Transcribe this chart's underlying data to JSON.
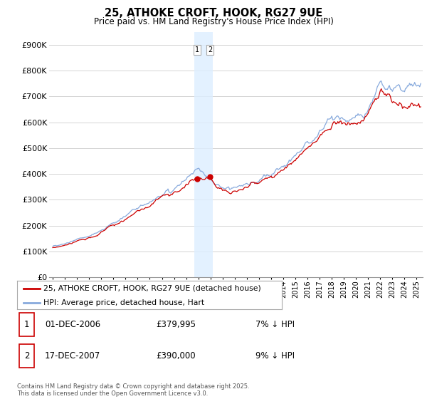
{
  "title": "25, ATHOKE CROFT, HOOK, RG27 9UE",
  "subtitle": "Price paid vs. HM Land Registry's House Price Index (HPI)",
  "copyright": "Contains HM Land Registry data © Crown copyright and database right 2025.\nThis data is licensed under the Open Government Licence v3.0.",
  "legend_entries": [
    "25, ATHOKE CROFT, HOOK, RG27 9UE (detached house)",
    "HPI: Average price, detached house, Hart"
  ],
  "transactions": [
    {
      "num": "1",
      "date": "01-DEC-2006",
      "price": "£379,995",
      "hpi_diff": "7% ↓ HPI"
    },
    {
      "num": "2",
      "date": "17-DEC-2007",
      "price": "£390,000",
      "hpi_diff": "9% ↓ HPI"
    }
  ],
  "transaction_dates": [
    2006.917,
    2007.958
  ],
  "transaction_prices": [
    379995,
    390000
  ],
  "ylim": [
    0,
    950000
  ],
  "yticks": [
    0,
    100000,
    200000,
    300000,
    400000,
    500000,
    600000,
    700000,
    800000,
    900000
  ],
  "ytick_labels": [
    "£0",
    "£100K",
    "£200K",
    "£300K",
    "£400K",
    "£500K",
    "£600K",
    "£700K",
    "£800K",
    "£900K"
  ],
  "xlim_start": 1994.7,
  "xlim_end": 2025.5,
  "line_color_property": "#cc0000",
  "line_color_hpi": "#88aadd",
  "shading_color": "#ddeeff",
  "background_color": "#ffffff",
  "grid_color": "#cccccc"
}
